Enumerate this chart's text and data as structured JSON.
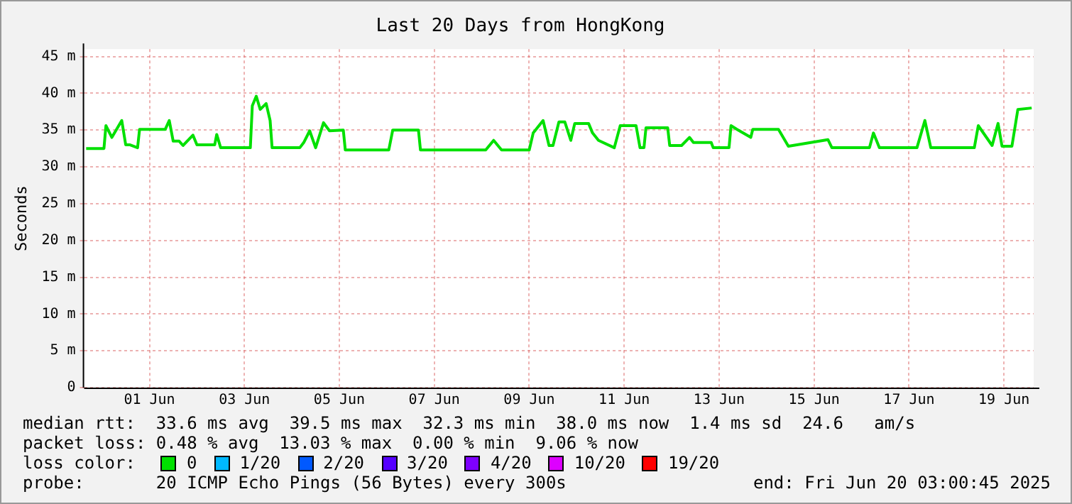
{
  "chart_data": {
    "type": "line",
    "title": "Last 20 Days from HongKong",
    "ylabel": "Seconds",
    "legend_title": "loss color:",
    "legend": "bottom",
    "grid": true,
    "marker": "none",
    "line_style": "solid",
    "xlim": [
      "2025-05-31T03:00",
      "2025-06-20T03:00"
    ],
    "xticks": [
      {
        "value": "2025-06-01T12:00",
        "label": "01 Jun"
      },
      {
        "value": "2025-06-03T12:00",
        "label": "03 Jun"
      },
      {
        "value": "2025-06-05T12:00",
        "label": "05 Jun"
      },
      {
        "value": "2025-06-07T12:00",
        "label": "07 Jun"
      },
      {
        "value": "2025-06-09T12:00",
        "label": "09 Jun"
      },
      {
        "value": "2025-06-11T12:00",
        "label": "11 Jun"
      },
      {
        "value": "2025-06-13T12:00",
        "label": "13 Jun"
      },
      {
        "value": "2025-06-15T12:00",
        "label": "15 Jun"
      },
      {
        "value": "2025-06-17T12:00",
        "label": "17 Jun"
      },
      {
        "value": "2025-06-19T12:00",
        "label": "19 Jun"
      }
    ],
    "ylim": [
      0,
      46
    ],
    "yticks": [
      0,
      {
        "value": 5,
        "label": "5 m"
      },
      {
        "value": 10,
        "label": "10 m"
      },
      {
        "value": 15,
        "label": "15 m"
      },
      {
        "value": 20,
        "label": "20 m"
      },
      {
        "value": 25,
        "label": "25 m"
      },
      {
        "value": 30,
        "label": "30 m"
      },
      {
        "value": 35,
        "label": "35 m"
      },
      {
        "value": 40,
        "label": "40 m"
      },
      {
        "value": 45,
        "label": "45 m"
      }
    ],
    "x": [
      "2025-05-31T04:00",
      "2025-05-31T13:00",
      "2025-05-31T14:00",
      "2025-05-31T17:00",
      "2025-05-31T22:00",
      "2025-06-01T00:00",
      "2025-06-01T02:00",
      "2025-06-01T06:00",
      "2025-06-01T07:00",
      "2025-06-01T20:00",
      "2025-06-01T22:00",
      "2025-06-02T00:00",
      "2025-06-02T03:00",
      "2025-06-02T05:00",
      "2025-06-02T10:00",
      "2025-06-02T12:00",
      "2025-06-02T21:00",
      "2025-06-02T22:00",
      "2025-06-03T00:00",
      "2025-06-03T15:00",
      "2025-06-03T16:00",
      "2025-06-03T18:00",
      "2025-06-03T20:00",
      "2025-06-03T23:00",
      "2025-06-04T01:00",
      "2025-06-04T02:00",
      "2025-06-04T16:00",
      "2025-06-04T18:00",
      "2025-06-04T21:00",
      "2025-06-05T00:00",
      "2025-06-05T04:00",
      "2025-06-05T07:00",
      "2025-06-05T14:00",
      "2025-06-05T15:00",
      "2025-06-06T13:00",
      "2025-06-06T15:00",
      "2025-06-07T04:00",
      "2025-06-07T05:00",
      "2025-06-08T14:00",
      "2025-06-08T18:00",
      "2025-06-08T22:00",
      "2025-06-09T12:00",
      "2025-06-09T14:00",
      "2025-06-09T19:00",
      "2025-06-09T22:00",
      "2025-06-10T00:00",
      "2025-06-10T03:00",
      "2025-06-10T06:00",
      "2025-06-10T09:00",
      "2025-06-10T11:00",
      "2025-06-10T18:00",
      "2025-06-10T20:00",
      "2025-06-10T23:00",
      "2025-06-11T07:00",
      "2025-06-11T10:00",
      "2025-06-11T18:00",
      "2025-06-11T20:00",
      "2025-06-11T22:00",
      "2025-06-11T23:00",
      "2025-06-12T10:00",
      "2025-06-12T11:00",
      "2025-06-12T17:00",
      "2025-06-12T21:00",
      "2025-06-12T23:00",
      "2025-06-13T08:00",
      "2025-06-13T09:00",
      "2025-06-13T17:00",
      "2025-06-13T18:00",
      "2025-06-13T21:00",
      "2025-06-14T04:00",
      "2025-06-14T05:00",
      "2025-06-14T18:00",
      "2025-06-14T23:00",
      "2025-06-15T19:00",
      "2025-06-15T21:00",
      "2025-06-16T16:00",
      "2025-06-16T18:00",
      "2025-06-16T21:00",
      "2025-06-17T16:00",
      "2025-06-17T20:00",
      "2025-06-17T23:00",
      "2025-06-18T21:00",
      "2025-06-18T23:00",
      "2025-06-19T06:00",
      "2025-06-19T09:00",
      "2025-06-19T11:00",
      "2025-06-19T16:00",
      "2025-06-19T19:00",
      "2025-06-20T02:00"
    ],
    "series": [
      {
        "name": "0",
        "color": "#00e000",
        "values": [
          32.5,
          32.5,
          35.6,
          34.0,
          36.3,
          33.0,
          33.0,
          32.6,
          35.1,
          35.1,
          36.3,
          33.5,
          33.5,
          32.9,
          34.3,
          33.0,
          33.0,
          34.4,
          32.6,
          32.6,
          38.3,
          39.6,
          37.8,
          38.6,
          36.3,
          32.6,
          32.6,
          33.3,
          34.9,
          32.6,
          36.0,
          34.9,
          35.0,
          32.3,
          32.3,
          35.0,
          35.0,
          32.3,
          32.3,
          33.6,
          32.3,
          32.3,
          34.6,
          36.3,
          32.9,
          32.9,
          36.1,
          36.1,
          33.6,
          35.9,
          35.9,
          34.6,
          33.6,
          32.6,
          35.6,
          35.6,
          32.6,
          32.6,
          35.3,
          35.3,
          32.9,
          32.9,
          34.0,
          33.3,
          33.3,
          32.6,
          32.6,
          35.6,
          35.1,
          34.0,
          35.1,
          35.1,
          32.8,
          33.7,
          32.6,
          32.6,
          34.6,
          32.6,
          32.6,
          36.3,
          32.6,
          32.6,
          35.6,
          32.9,
          35.9,
          32.8,
          32.8,
          37.8,
          38.0
        ]
      },
      {
        "name": "1/20",
        "color": "#00b8ff",
        "values": [
          null,
          null,
          null,
          null,
          null,
          null,
          null,
          null,
          null,
          null,
          null,
          null,
          null,
          null,
          null,
          null,
          null,
          null,
          null,
          null,
          null,
          null,
          null,
          null,
          null,
          null,
          null,
          null,
          null,
          null,
          null,
          null,
          null,
          null,
          null,
          null,
          null,
          null,
          null,
          null,
          null,
          null,
          null,
          null,
          null,
          null,
          null,
          null,
          null,
          null,
          null,
          null,
          null,
          null,
          null,
          null,
          null,
          null,
          null,
          null,
          null,
          null,
          null,
          null,
          null,
          null,
          null,
          null,
          null,
          null,
          null,
          null,
          null,
          null,
          null,
          null,
          null,
          null,
          null,
          null,
          null,
          null,
          null,
          null,
          null,
          null,
          null,
          null,
          null
        ]
      },
      {
        "name": "2/20",
        "color": "#0059ff",
        "values": [
          null,
          null,
          null,
          null,
          null,
          null,
          null,
          null,
          null,
          null,
          null,
          null,
          null,
          null,
          null,
          null,
          null,
          null,
          null,
          null,
          null,
          null,
          null,
          null,
          null,
          null,
          null,
          null,
          null,
          null,
          null,
          null,
          null,
          null,
          null,
          null,
          null,
          null,
          null,
          null,
          null,
          null,
          null,
          null,
          null,
          null,
          null,
          null,
          null,
          null,
          null,
          null,
          null,
          null,
          null,
          null,
          null,
          null,
          null,
          null,
          null,
          null,
          null,
          null,
          null,
          null,
          null,
          null,
          null,
          null,
          null,
          null,
          null,
          null,
          null,
          null,
          null,
          null,
          null,
          null,
          null,
          null,
          null,
          null,
          null,
          null,
          null,
          null,
          null
        ]
      },
      {
        "name": "3/20",
        "color": "#5500ff",
        "values": [
          null,
          null,
          null,
          null,
          null,
          null,
          null,
          null,
          null,
          null,
          null,
          null,
          null,
          null,
          null,
          null,
          null,
          null,
          null,
          null,
          null,
          null,
          null,
          null,
          null,
          null,
          null,
          null,
          null,
          null,
          null,
          null,
          null,
          null,
          null,
          null,
          null,
          null,
          null,
          null,
          null,
          null,
          null,
          null,
          null,
          null,
          null,
          null,
          null,
          null,
          null,
          null,
          null,
          null,
          null,
          null,
          null,
          null,
          null,
          null,
          null,
          null,
          null,
          null,
          null,
          null,
          null,
          null,
          null,
          null,
          null,
          null,
          null,
          null,
          null,
          null,
          null,
          null,
          null,
          null,
          null,
          null,
          null,
          null,
          null,
          null,
          null,
          null,
          null
        ]
      },
      {
        "name": "4/20",
        "color": "#7e00ff",
        "values": [
          null,
          null,
          null,
          null,
          null,
          null,
          null,
          null,
          null,
          null,
          null,
          null,
          null,
          null,
          null,
          null,
          null,
          null,
          null,
          null,
          null,
          null,
          null,
          null,
          null,
          null,
          null,
          null,
          null,
          null,
          null,
          null,
          null,
          null,
          null,
          null,
          null,
          null,
          null,
          null,
          null,
          null,
          null,
          null,
          null,
          null,
          null,
          null,
          null,
          null,
          null,
          null,
          null,
          null,
          null,
          null,
          null,
          null,
          null,
          null,
          null,
          null,
          null,
          null,
          null,
          null,
          null,
          null,
          null,
          null,
          null,
          null,
          null,
          null,
          null,
          null,
          null,
          null,
          null,
          null,
          null,
          null,
          null,
          null,
          null,
          null,
          null,
          null,
          null
        ]
      },
      {
        "name": "10/20",
        "color": "#dd00ff",
        "values": [
          null,
          null,
          null,
          null,
          null,
          null,
          null,
          null,
          null,
          null,
          null,
          null,
          null,
          null,
          null,
          null,
          null,
          null,
          null,
          null,
          null,
          null,
          null,
          null,
          null,
          null,
          null,
          null,
          null,
          null,
          null,
          null,
          null,
          null,
          null,
          null,
          null,
          null,
          null,
          null,
          null,
          null,
          null,
          null,
          null,
          null,
          null,
          null,
          null,
          null,
          null,
          null,
          null,
          null,
          null,
          null,
          null,
          null,
          null,
          null,
          null,
          null,
          null,
          null,
          null,
          null,
          null,
          null,
          null,
          null,
          null,
          null,
          null,
          null,
          null,
          null,
          null,
          null,
          null,
          null,
          null,
          null,
          null,
          null,
          null,
          null,
          null,
          null,
          null
        ]
      },
      {
        "name": "19/20",
        "color": "#ff0000",
        "values": [
          null,
          null,
          null,
          null,
          null,
          null,
          null,
          null,
          null,
          null,
          null,
          null,
          null,
          null,
          null,
          null,
          null,
          null,
          null,
          null,
          null,
          null,
          null,
          null,
          null,
          null,
          null,
          null,
          null,
          null,
          null,
          null,
          null,
          null,
          null,
          null,
          null,
          null,
          null,
          null,
          null,
          null,
          null,
          null,
          null,
          null,
          null,
          null,
          null,
          null,
          null,
          null,
          null,
          null,
          null,
          null,
          null,
          null,
          null,
          null,
          null,
          null,
          null,
          null,
          null,
          null,
          null,
          null,
          null,
          null,
          null,
          null,
          null,
          null,
          null,
          null,
          null,
          null,
          null,
          null,
          null,
          null,
          null,
          null,
          null,
          null,
          null,
          null,
          null
        ]
      }
    ],
    "annotations": [
      "median rtt:  33.6 ms avg  39.5 ms max  32.3 ms min  38.0 ms now  1.4 ms sd  24.6   am/s",
      "packet loss: 0.48 % avg  13.03 % max  0.00 % min  9.06 % now",
      "probe:       20 ICMP Echo Pings (56 Bytes) every 300s",
      "end: Fri Jun 20 03:00:45 2025"
    ]
  }
}
